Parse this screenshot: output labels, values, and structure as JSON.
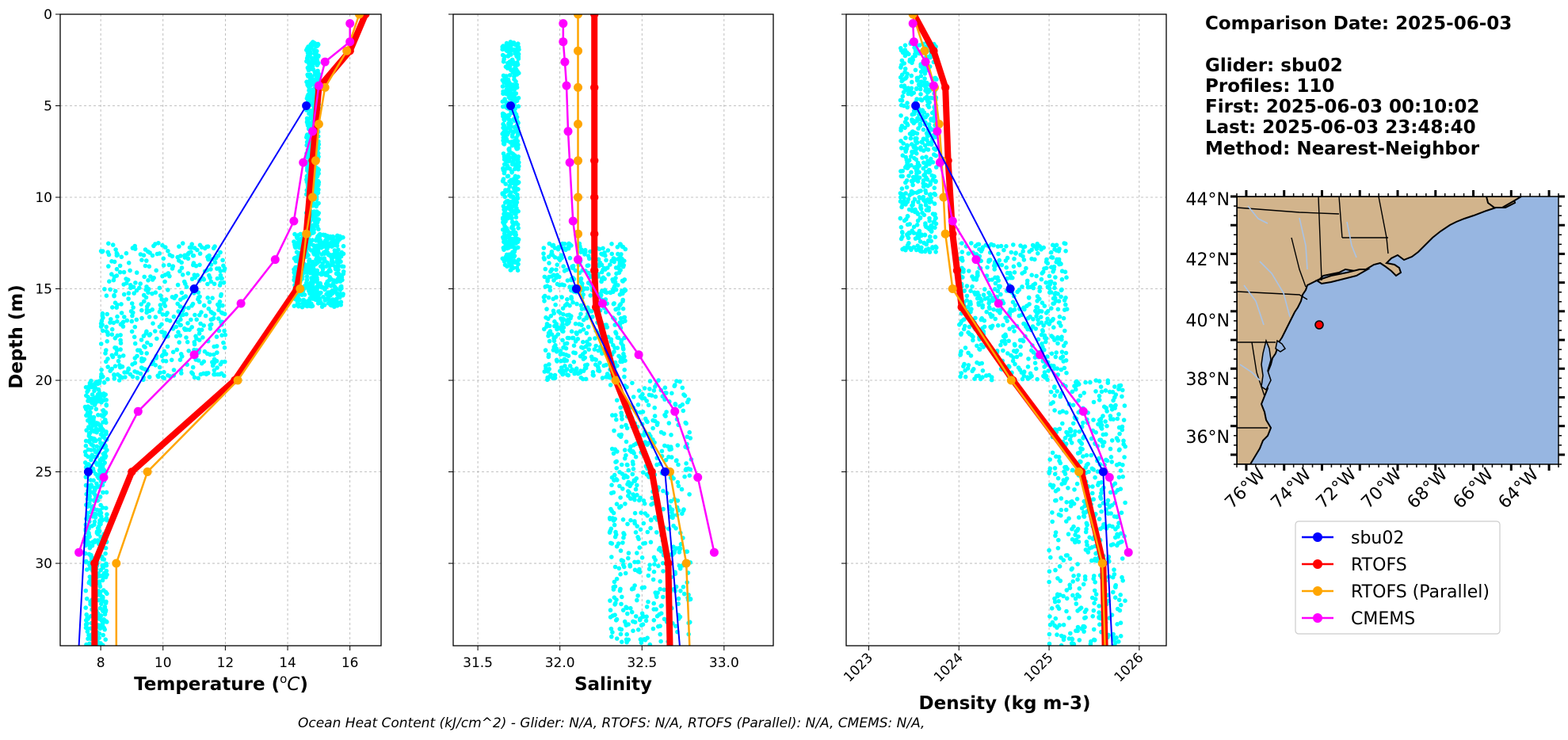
{
  "chart_data": [
    {
      "type": "line",
      "xlabel": "Temperature ($^oC$)",
      "xlabel_main": "Temperature (",
      "xlabel_unit": "C",
      "xlabel_sup": "o",
      "xlabel_close": ")",
      "ylabel": "Depth (m)",
      "xlim": [
        6.7,
        17
      ],
      "ylim": [
        34.5,
        0
      ],
      "x_ticks": [
        8,
        10,
        12,
        14,
        16
      ],
      "y_ticks": [
        0,
        5,
        10,
        15,
        20,
        25,
        30
      ],
      "grid": true,
      "glider_cloud": [
        {
          "x": [
            15.0,
            14.6
          ],
          "y": [
            1.5,
            12
          ]
        },
        {
          "x": [
            14.2,
            15.8
          ],
          "y": [
            12,
            16
          ]
        },
        {
          "x": [
            8.0,
            12.0
          ],
          "y": [
            12.5,
            20
          ]
        },
        {
          "x": [
            7.5,
            8.2
          ],
          "y": [
            20,
            34.5
          ]
        }
      ],
      "series": [
        {
          "name": "sbu02",
          "color": "#0000ff",
          "width": 2,
          "x": [
            14.6,
            11.0,
            7.6,
            7.3
          ],
          "y": [
            5,
            15,
            25,
            34.5
          ]
        },
        {
          "name": "RTOFS",
          "color": "#ff0000",
          "width": 8,
          "x": [
            16.5,
            16.0,
            15.0,
            14.8,
            14.6,
            14.3,
            12.3,
            9.0,
            7.8,
            7.8
          ],
          "y": [
            0,
            2,
            4,
            8,
            12,
            15,
            20,
            25,
            30,
            34.5
          ]
        },
        {
          "name": "RTOFS (Parallel)",
          "color": "#ffa500",
          "width": 2.5,
          "x": [
            16.3,
            15.9,
            15.2,
            15.0,
            14.9,
            14.8,
            14.6,
            14.4,
            12.4,
            9.5,
            8.5,
            8.5
          ],
          "y": [
            0,
            2,
            4,
            6,
            8,
            10,
            12,
            15,
            20,
            25,
            30,
            34.5
          ]
        },
        {
          "name": "CMEMS",
          "color": "#ff00ff",
          "width": 2.5,
          "x": [
            16.0,
            16.0,
            15.2,
            15.0,
            14.8,
            14.5,
            14.2,
            13.6,
            12.5,
            11.0,
            9.2,
            8.1,
            7.3
          ],
          "y": [
            0.5,
            1.5,
            2.6,
            3.9,
            6.4,
            8.1,
            11.3,
            13.4,
            15.8,
            18.6,
            21.7,
            25.3,
            29.4
          ]
        }
      ]
    },
    {
      "type": "line",
      "xlabel": "Salinity",
      "xlim": [
        31.35,
        33.3
      ],
      "ylim": [
        34.5,
        0
      ],
      "x_ticks": [
        31.5,
        32.0,
        32.5,
        33.0
      ],
      "grid": true,
      "glider_cloud": [
        {
          "x": [
            31.65,
            31.75
          ],
          "y": [
            1.5,
            14
          ]
        },
        {
          "x": [
            31.9,
            32.4
          ],
          "y": [
            12.5,
            20
          ]
        },
        {
          "x": [
            32.3,
            32.8
          ],
          "y": [
            20,
            34.5
          ]
        }
      ],
      "series": [
        {
          "name": "sbu02",
          "color": "#0000ff",
          "width": 2,
          "x": [
            31.7,
            32.1,
            32.64,
            32.73
          ],
          "y": [
            5,
            15,
            25,
            34.5
          ]
        },
        {
          "name": "RTOFS",
          "color": "#ff0000",
          "width": 8,
          "x": [
            32.21,
            32.21,
            32.21,
            32.21,
            32.21,
            32.21,
            32.22,
            32.34,
            32.56,
            32.66,
            32.67
          ],
          "y": [
            0,
            4,
            8,
            10,
            12,
            14,
            16,
            20,
            25,
            30,
            34.5
          ]
        },
        {
          "name": "RTOFS (Parallel)",
          "color": "#ffa500",
          "width": 2.5,
          "x": [
            32.11,
            32.11,
            32.11,
            32.11,
            32.11,
            32.11,
            32.11,
            32.11,
            32.34,
            32.67,
            32.77,
            32.79
          ],
          "y": [
            0,
            2,
            4,
            6,
            8,
            10,
            12,
            15,
            20,
            25,
            30,
            34.5
          ]
        },
        {
          "name": "CMEMS",
          "color": "#ff00ff",
          "width": 2.5,
          "x": [
            32.02,
            32.02,
            32.03,
            32.04,
            32.05,
            32.06,
            32.08,
            32.11,
            32.26,
            32.48,
            32.7,
            32.84,
            32.94
          ],
          "y": [
            0.5,
            1.5,
            2.6,
            3.9,
            6.4,
            8.1,
            11.3,
            13.4,
            15.8,
            18.6,
            21.7,
            25.3,
            29.4
          ]
        }
      ]
    },
    {
      "type": "line",
      "xlabel": "Density (kg m-3)",
      "xlim": [
        1022.75,
        1026.3
      ],
      "ylim": [
        34.5,
        0
      ],
      "x_ticks": [
        1023,
        1024,
        1025,
        1026
      ],
      "grid": true,
      "glider_cloud": [
        {
          "x": [
            1023.35,
            1023.75
          ],
          "y": [
            1.5,
            13
          ]
        },
        {
          "x": [
            1024.0,
            1025.2
          ],
          "y": [
            12.5,
            20
          ]
        },
        {
          "x": [
            1025.0,
            1025.85
          ],
          "y": [
            20,
            34.5
          ]
        }
      ],
      "series": [
        {
          "name": "sbu02",
          "color": "#0000ff",
          "width": 2,
          "x": [
            1023.52,
            1024.57,
            1025.6,
            1025.7
          ],
          "y": [
            5,
            15,
            25,
            34.5
          ]
        },
        {
          "name": "RTOFS",
          "color": "#ff0000",
          "width": 8,
          "x": [
            1023.5,
            1023.72,
            1023.85,
            1023.88,
            1023.93,
            1023.98,
            1024.03,
            1024.6,
            1025.36,
            1025.6,
            1025.62
          ],
          "y": [
            0,
            2,
            4,
            8,
            12,
            14,
            16,
            20,
            25,
            30,
            34.5
          ]
        },
        {
          "name": "RTOFS (Parallel)",
          "color": "#ffa500",
          "width": 2.5,
          "x": [
            1023.49,
            1023.62,
            1023.73,
            1023.78,
            1023.81,
            1023.83,
            1023.85,
            1023.93,
            1024.58,
            1025.33,
            1025.59,
            1025.62
          ],
          "y": [
            0,
            2,
            4,
            6,
            8,
            10,
            12,
            15,
            20,
            25,
            30,
            34.5
          ]
        },
        {
          "name": "CMEMS",
          "color": "#ff00ff",
          "width": 2.5,
          "x": [
            1023.49,
            1023.5,
            1023.63,
            1023.72,
            1023.76,
            1023.79,
            1023.93,
            1024.19,
            1024.44,
            1024.9,
            1025.38,
            1025.67,
            1025.88
          ],
          "y": [
            0.5,
            1.5,
            2.6,
            3.9,
            6.4,
            8.1,
            11.3,
            13.4,
            15.8,
            18.6,
            21.7,
            25.3,
            29.4
          ]
        }
      ]
    }
  ],
  "info": {
    "comparison_date": "Comparison Date: 2025-06-03",
    "glider": "Glider: sbu02",
    "profiles": "Profiles: 110",
    "first": "First: 2025-06-03 00:10:02",
    "last": "Last: 2025-06-03 23:48:40",
    "method": "Method: Nearest-Neighbor"
  },
  "map": {
    "lat_ticks": [
      "44°N",
      "42°N",
      "40°N",
      "38°N",
      "36°N"
    ],
    "lon_ticks": [
      "76°W",
      "74°W",
      "72°W",
      "70°W",
      "68°W",
      "66°W",
      "64°W"
    ],
    "land_color": "#d2b48c",
    "ocean_color": "#97b6e1",
    "marker_color": "#ff0000"
  },
  "legend": [
    {
      "label": "sbu02",
      "color": "#0000ff"
    },
    {
      "label": "RTOFS",
      "color": "#ff0000"
    },
    {
      "label": "RTOFS (Parallel)",
      "color": "#ffa500"
    },
    {
      "label": "CMEMS",
      "color": "#ff00ff"
    }
  ],
  "footnote": "Ocean Heat Content (kJ/cm^2) - Glider: N/A,  RTOFS: N/A,  RTOFS (Parallel): N/A,  CMEMS: N/A,"
}
